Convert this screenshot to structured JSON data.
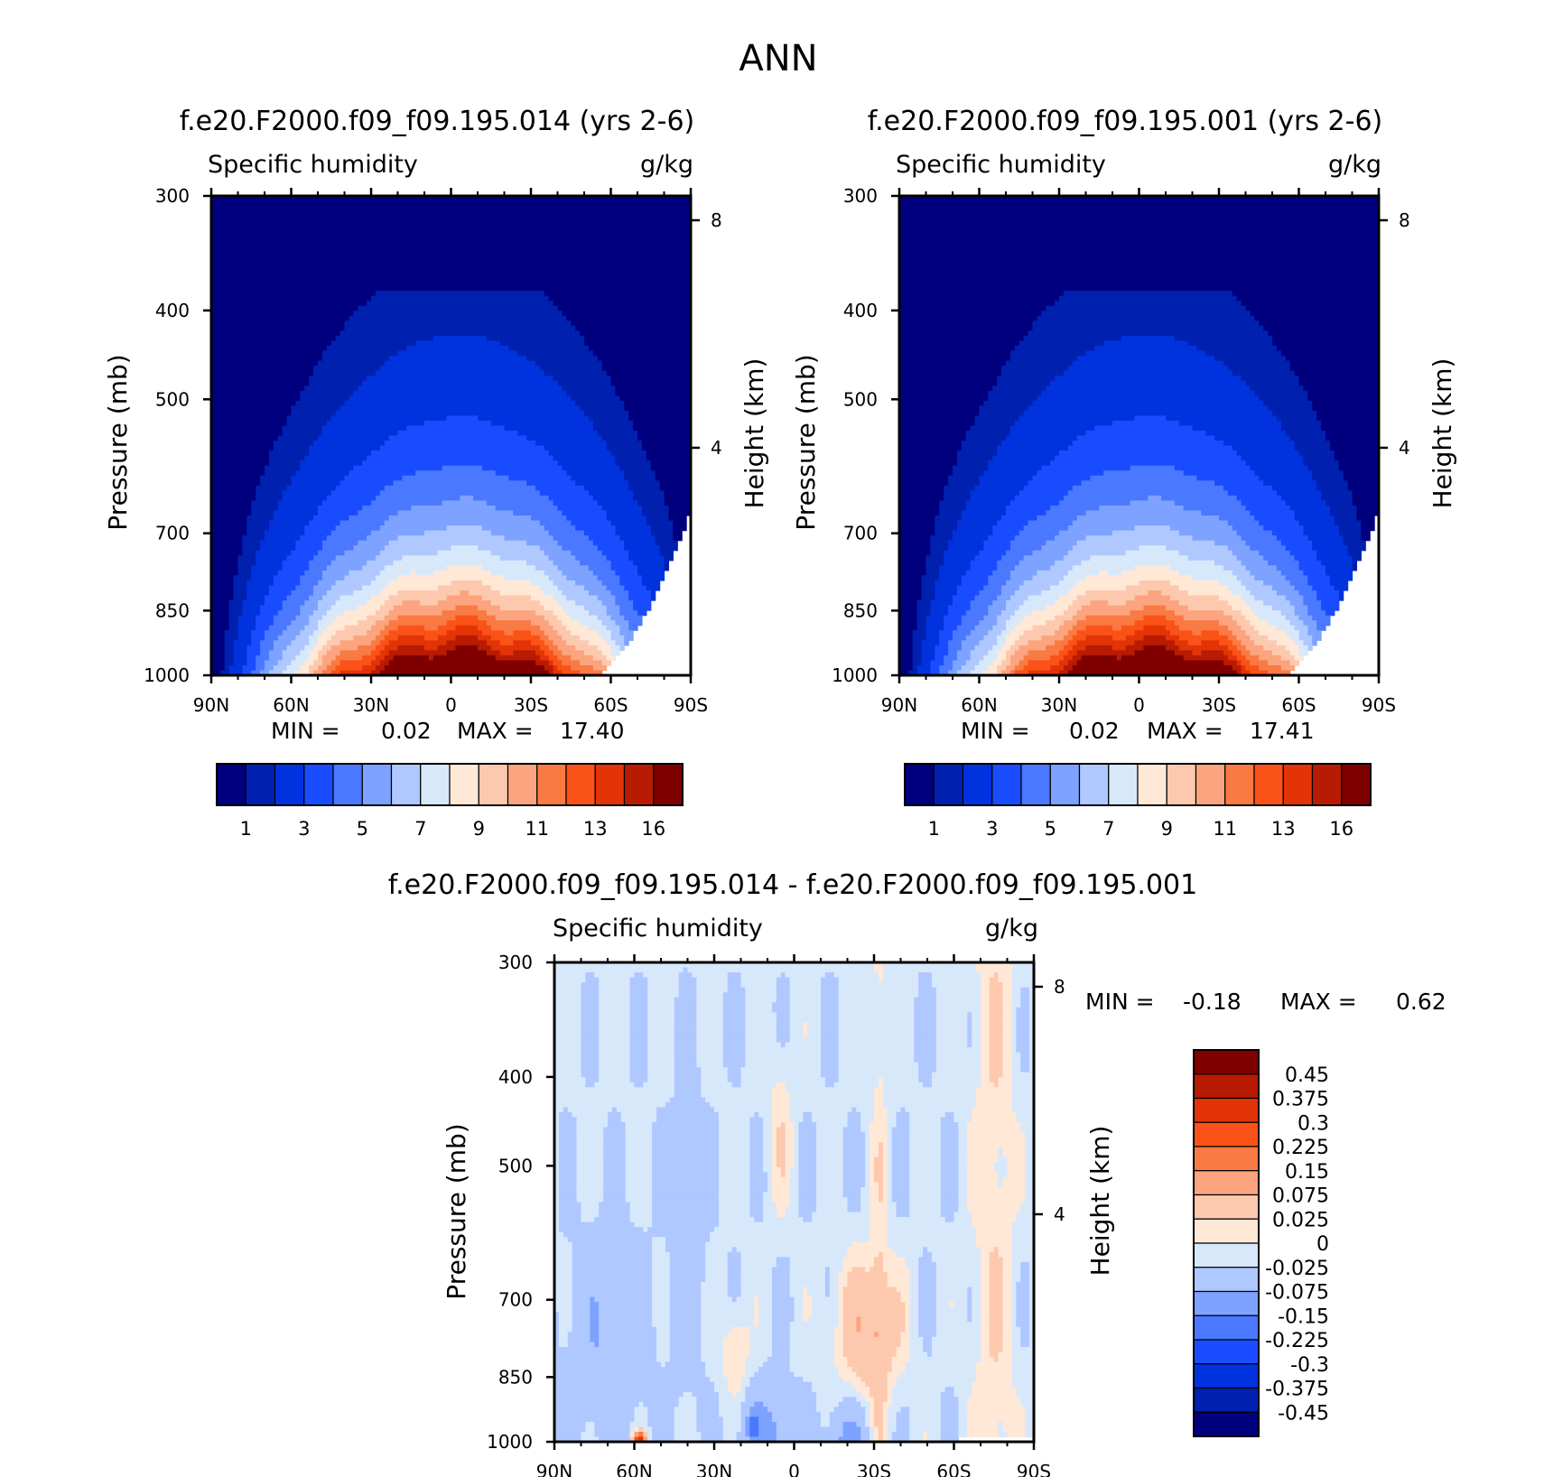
{
  "figure": {
    "title": "ANN"
  },
  "colors": {
    "abs_palette": [
      "#00007f",
      "#0020b0",
      "#0033dd",
      "#1a4cff",
      "#4a78ff",
      "#7da2ff",
      "#afc8ff",
      "#d8e8fb",
      "#ffe8d6",
      "#fdc9ae",
      "#fba47f",
      "#fa7a44",
      "#fb5218",
      "#e23407",
      "#b81b02",
      "#800000"
    ],
    "diff_palette": [
      "#00007f",
      "#0020b0",
      "#0033dd",
      "#1a4cff",
      "#4a78ff",
      "#7da2ff",
      "#afc8ff",
      "#d8e8fb",
      "#ffe8d6",
      "#fdc9ae",
      "#fba47f",
      "#fa7a44",
      "#fb5218",
      "#e23407",
      "#b81b02",
      "#800000"
    ]
  },
  "chart_data": [
    {
      "id": "panel-left",
      "type": "contour",
      "title": "f.e20.F2000.f09_f09.195.014 (yrs 2-6)",
      "left_label": "Specific humidity",
      "right_label": "g/kg",
      "ylabel": "Pressure (mb)",
      "ylabel_right": "Height (km)",
      "x_ticks": [
        "90N",
        "60N",
        "30N",
        "0",
        "30S",
        "60S",
        "90S"
      ],
      "x_values": [
        90,
        60,
        30,
        0,
        -30,
        -60,
        -90
      ],
      "y_ticks": [
        "300",
        "400",
        "500",
        "700",
        "850",
        "1000"
      ],
      "y_values": [
        300,
        400,
        500,
        700,
        850,
        1000
      ],
      "ylim": [
        300,
        1000
      ],
      "height_ticks": [
        "8",
        "4"
      ],
      "height_values_km": [
        8,
        4
      ],
      "min_label": "MIN =",
      "min_value": "0.02",
      "max_label": "MAX =",
      "max_value": "17.40",
      "colorbar_labels": [
        "1",
        "3",
        "5",
        "7",
        "9",
        "11",
        "13",
        "16"
      ],
      "contour_levels": [
        0.5,
        1,
        2,
        3,
        4,
        5,
        6,
        7,
        8,
        9,
        10,
        11,
        12,
        13,
        14,
        16
      ],
      "peak_latitude": -3,
      "peak_value": 17.4
    },
    {
      "id": "panel-right",
      "type": "contour",
      "title": "f.e20.F2000.f09_f09.195.001 (yrs 2-6)",
      "left_label": "Specific humidity",
      "right_label": "g/kg",
      "ylabel": "Pressure (mb)",
      "ylabel_right": "Height (km)",
      "x_ticks": [
        "90N",
        "60N",
        "30N",
        "0",
        "30S",
        "60S",
        "90S"
      ],
      "x_values": [
        90,
        60,
        30,
        0,
        -30,
        -60,
        -90
      ],
      "y_ticks": [
        "300",
        "400",
        "500",
        "700",
        "850",
        "1000"
      ],
      "y_values": [
        300,
        400,
        500,
        700,
        850,
        1000
      ],
      "ylim": [
        300,
        1000
      ],
      "height_ticks": [
        "8",
        "4"
      ],
      "height_values_km": [
        8,
        4
      ],
      "min_label": "MIN =",
      "min_value": "0.02",
      "max_label": "MAX =",
      "max_value": "17.41",
      "colorbar_labels": [
        "1",
        "3",
        "5",
        "7",
        "9",
        "11",
        "13",
        "16"
      ],
      "contour_levels": [
        0.5,
        1,
        2,
        3,
        4,
        5,
        6,
        7,
        8,
        9,
        10,
        11,
        12,
        13,
        14,
        16
      ],
      "peak_latitude": -3,
      "peak_value": 17.41
    },
    {
      "id": "panel-diff",
      "type": "contour",
      "title": "f.e20.F2000.f09_f09.195.014 - f.e20.F2000.f09_f09.195.001",
      "left_label": "Specific humidity",
      "right_label": "g/kg",
      "ylabel": "Pressure (mb)",
      "ylabel_right": "Height (km)",
      "x_ticks": [
        "90N",
        "60N",
        "30N",
        "0",
        "30S",
        "60S",
        "90S"
      ],
      "x_values": [
        90,
        60,
        30,
        0,
        -30,
        -60,
        -90
      ],
      "y_ticks": [
        "300",
        "400",
        "500",
        "700",
        "850",
        "1000"
      ],
      "y_values": [
        300,
        400,
        500,
        700,
        850,
        1000
      ],
      "ylim": [
        300,
        1000
      ],
      "height_ticks": [
        "8",
        "4"
      ],
      "height_values_km": [
        8,
        4
      ],
      "min_label": "MIN =",
      "min_value": "-0.18",
      "max_label": "MAX =",
      "max_value": "0.62",
      "colorbar_labels": [
        "0.45",
        "0.375",
        "0.3",
        "0.225",
        "0.15",
        "0.075",
        "0.025",
        "0",
        "-0.025",
        "-0.075",
        "-0.15",
        "-0.225",
        "-0.3",
        "-0.375",
        "-0.45"
      ],
      "contour_levels": [
        -0.45,
        -0.375,
        -0.3,
        -0.225,
        -0.15,
        -0.075,
        -0.025,
        0,
        0.025,
        0.075,
        0.15,
        0.225,
        0.3,
        0.375,
        0.45
      ]
    }
  ]
}
